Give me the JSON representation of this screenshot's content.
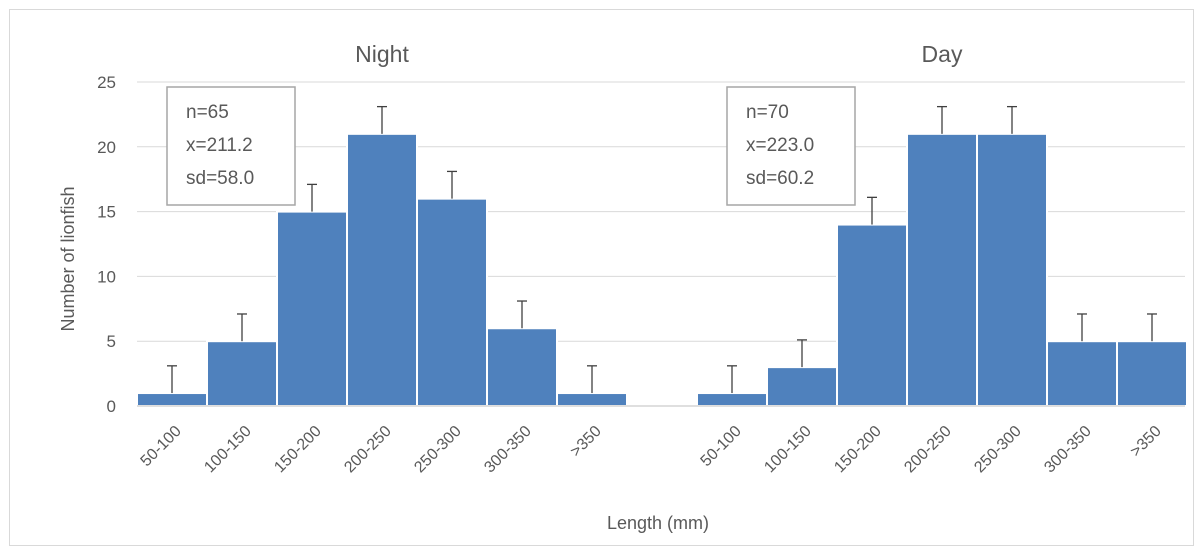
{
  "chart_data": {
    "type": "bar",
    "ylabel": "Number of lionfish",
    "xlabel": "Length (mm)",
    "ylim": [
      0,
      25
    ],
    "yticks": [
      0,
      5,
      10,
      15,
      20,
      25
    ],
    "grid": true,
    "colors": {
      "bar": "#4f81bd",
      "error_bar": "#404040",
      "grid": "#d9d9d9"
    },
    "panels": [
      {
        "title": "Night",
        "categories": [
          "50-100",
          "100-150",
          "150-200",
          "200-250",
          "250-300",
          "300-350",
          ">350"
        ],
        "values": [
          1,
          5,
          15,
          21,
          16,
          6,
          1
        ],
        "error_plus": [
          2.1,
          2.1,
          2.1,
          2.1,
          2.1,
          2.1,
          2.1
        ],
        "stats": [
          "n=65",
          "x=211.2",
          "sd=58.0"
        ]
      },
      {
        "title": "Day",
        "categories": [
          "50-100",
          "100-150",
          "150-200",
          "200-250",
          "250-300",
          "300-350",
          ">350"
        ],
        "values": [
          1,
          3,
          14,
          21,
          21,
          5,
          5
        ],
        "error_plus": [
          2.1,
          2.1,
          2.1,
          2.1,
          2.1,
          2.1,
          2.1
        ],
        "stats": [
          "n=70",
          "x=223.0",
          "sd=60.2"
        ]
      }
    ]
  }
}
